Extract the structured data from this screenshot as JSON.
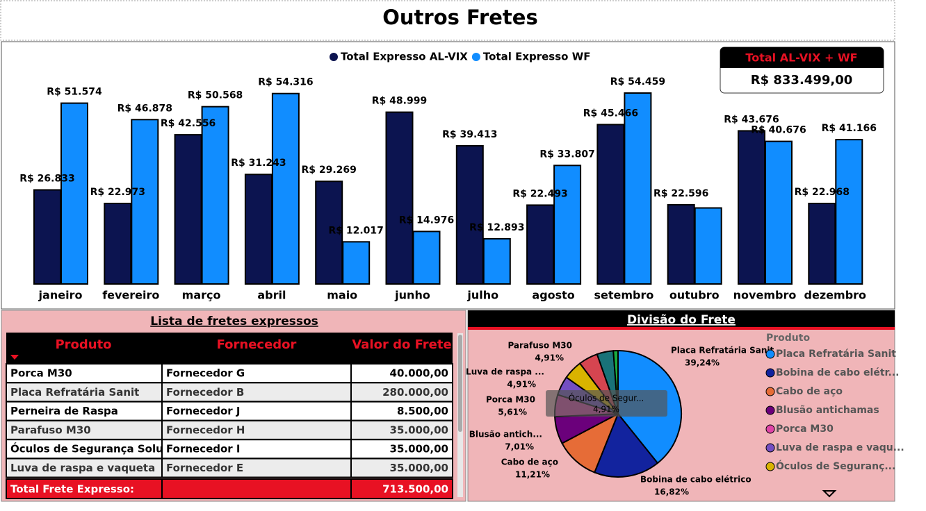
{
  "title": "Outros Fretes",
  "kpi": {
    "title": "Total AL-VIX + WF",
    "value": "R$ 833.499,00"
  },
  "chart_data": [
    {
      "type": "bar",
      "categories": [
        "janeiro",
        "fevereiro",
        "março",
        "abril",
        "maio",
        "junho",
        "julho",
        "agosto",
        "setembro",
        "outubro",
        "novembro",
        "dezembro"
      ],
      "series": [
        {
          "name": "Total Expresso AL-VIX",
          "color": "#0c1450",
          "values": [
            26833,
            22973,
            42556,
            31243,
            29269,
            48999,
            39413,
            22493,
            45466,
            22596,
            43676,
            22968
          ],
          "value_labels": [
            "R$ 26.833",
            "R$ 22.973",
            "R$ 42.556",
            "R$ 31.243",
            "R$ 29.269",
            "R$ 48.999",
            "R$ 39.413",
            "R$ 22.493",
            "R$ 45.466",
            "R$ 22.596",
            "R$ 43.676",
            "R$ 22.968"
          ]
        },
        {
          "name": "Total Expresso WF",
          "color": "#118dff",
          "values": [
            51574,
            46878,
            50568,
            54316,
            12017,
            14976,
            12893,
            33807,
            54459,
            21684,
            40676,
            41166
          ],
          "value_labels": [
            "R$ 51.574",
            "R$ 46.878",
            "R$ 50.568",
            "R$ 54.316",
            "R$ 12.017",
            "R$ 14.976",
            "R$ 12.893",
            "R$ 33.807",
            "R$ 54.459",
            null,
            "R$ 40.676",
            "R$ 41.166"
          ]
        }
      ]
    },
    {
      "type": "pie",
      "title": "Divisão do Frete",
      "categories": [
        "Placa Refratária Sanit",
        "Bobina de cabo elétrico",
        "Cabo de aço",
        "Blusão antich...",
        "Porca M30",
        "Luva de raspa ...",
        "Óculos de Segur...",
        "Parafuso M30",
        null,
        null
      ],
      "values": [
        39.24,
        16.82,
        11.21,
        7.01,
        5.61,
        4.91,
        4.91,
        4.91,
        4.19,
        1.19
      ],
      "value_labels": [
        "39,24%",
        "16,82%",
        "11,21%",
        "7,01%",
        "5,61%",
        "4,91%",
        "4,91%",
        "4,91%",
        null,
        null
      ],
      "colors": [
        "#118dff",
        "#12239e",
        "#e66c37",
        "#6b007b",
        "#e044a7",
        "#744ec2",
        "#d9b300",
        "#d64550",
        "#197278",
        "#1aab40"
      ],
      "legend": {
        "title": "Produto",
        "entries": [
          "Placa Refratária Sanit",
          "Bobina de cabo elétr...",
          "Cabo de aço",
          "Blusão antichamas",
          "Porca M30",
          "Luva de raspa e vaqu...",
          "Óculos de Seguranç..."
        ]
      }
    }
  ],
  "table": {
    "title": "Lista de fretes expressos",
    "columns": [
      "Produto",
      "Fornecedor",
      "Valor do Frete"
    ],
    "rows": [
      [
        "Porca M30",
        "Fornecedor G",
        "40.000,00"
      ],
      [
        "Placa Refratária Sanit",
        "Fornecedor B",
        "280.000,00"
      ],
      [
        "Perneira de Raspa",
        "Fornecedor J",
        "8.500,00"
      ],
      [
        "Parafuso M30",
        "Fornecedor H",
        "35.000,00"
      ],
      [
        "Óculos de Segurança Solus",
        "Fornecedor I",
        "35.000,00"
      ],
      [
        "Luva de raspa e vaqueta",
        "Fornecedor E",
        "35.000,00"
      ]
    ],
    "total": {
      "label": "Total Frete Expresso:",
      "value": "713.500,00"
    }
  }
}
